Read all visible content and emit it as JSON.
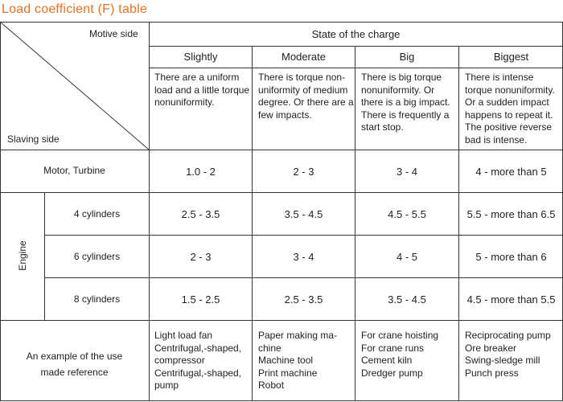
{
  "title": "Load coefficient (F) table",
  "header": {
    "motive_side": "Motive side",
    "slaving_side": "Slaving side",
    "state_of_charge": "State of the charge",
    "columns": [
      "Slightly",
      "Moderate",
      "Big",
      "Biggest"
    ],
    "descriptions": [
      [
        "There are a uniform",
        "load and a little torque",
        "nonuniformity."
      ],
      [
        "There is torque non-",
        "uniformity of medium",
        "degree. Or there are a",
        "few impacts."
      ],
      [
        "There is big torque",
        "nonuniformity. Or",
        "there is a big impact.",
        "There is frequently a",
        "start stop."
      ],
      [
        "There is intense",
        "torque nonuniformity.",
        "Or a sudden impact",
        "happens to repeat it.",
        "The positive reverse",
        "bad is intense."
      ]
    ]
  },
  "rows": {
    "motor": {
      "label": "Motor, Turbine",
      "values": [
        "1.0 - 2",
        "2 - 3",
        "3 - 4",
        "4 - more than 5"
      ]
    },
    "engine_label": "Engine",
    "engine": [
      {
        "label": "4 cylinders",
        "values": [
          "2.5 - 3.5",
          "3.5 - 4.5",
          "4.5 - 5.5",
          "5.5 - more than 6.5"
        ]
      },
      {
        "label": "6 cylinders",
        "values": [
          "2 - 3",
          "3 - 4",
          "4 - 5",
          "5 - more than 6"
        ]
      },
      {
        "label": "8 cylinders",
        "values": [
          "1.5 - 2.5",
          "2.5 - 3.5",
          "3.5 - 4.5",
          "4.5 - more than 5.5"
        ]
      }
    ],
    "examples": {
      "label": [
        "An example of the use",
        "made reference"
      ],
      "values": [
        [
          "Light load fan",
          "Centrifugal,-shaped,",
          "compressor",
          "Centrifugal,-shaped,",
          "pump"
        ],
        [
          "Paper making ma-",
          "chine",
          "Machine tool",
          "Print machine",
          "Robot"
        ],
        [
          "For crane hoisting",
          "For crane runs",
          "Cement kiln",
          "Dredger pump"
        ],
        [
          "Reciprocating pump",
          "Ore breaker",
          "Swing-sledge mill",
          "Punch press"
        ]
      ]
    }
  }
}
